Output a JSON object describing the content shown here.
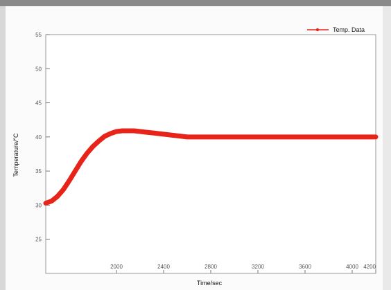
{
  "chart_data": {
    "type": "line",
    "title": "",
    "xlabel": "Time/sec",
    "ylabel": "Temperature/°C",
    "xlim": [
      1400,
      4200
    ],
    "ylim": [
      20,
      55
    ],
    "x_ticks": [
      2000,
      2400,
      2800,
      3200,
      3600,
      4000,
      4200
    ],
    "x_tick_labels": [
      "2000",
      "2400",
      "2800",
      "3200",
      "3600",
      "4000",
      "4200"
    ],
    "y_ticks": [
      25,
      30,
      35,
      40,
      45,
      50,
      55
    ],
    "y_tick_labels": [
      "25",
      "30",
      "35",
      "40",
      "45",
      "50",
      "55"
    ],
    "grid": false,
    "legend_position": "top-right",
    "series": [
      {
        "name": "Temp. Data",
        "color": "#e8231a",
        "x": [
          1400,
          1450,
          1500,
          1550,
          1600,
          1650,
          1700,
          1750,
          1800,
          1850,
          1900,
          1950,
          2000,
          2050,
          2100,
          2150,
          2200,
          2250,
          2300,
          2350,
          2400,
          2450,
          2500,
          2550,
          2600,
          2700,
          2800,
          2900,
          3000,
          3200,
          3400,
          3600,
          3800,
          4000,
          4200
        ],
        "y": [
          30.3,
          30.6,
          31.3,
          32.3,
          33.6,
          35.0,
          36.4,
          37.6,
          38.6,
          39.4,
          40.1,
          40.5,
          40.8,
          40.9,
          40.9,
          40.9,
          40.8,
          40.7,
          40.6,
          40.5,
          40.4,
          40.3,
          40.2,
          40.1,
          40.0,
          40.0,
          40.0,
          40.0,
          40.0,
          40.0,
          40.0,
          40.0,
          40.0,
          40.0,
          40.0
        ]
      }
    ]
  }
}
